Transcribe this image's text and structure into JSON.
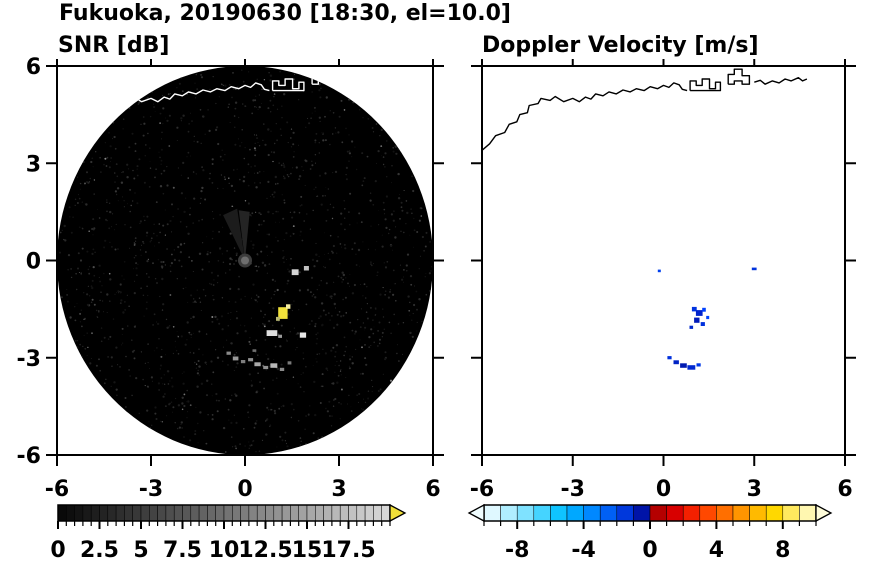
{
  "header": {
    "title": "Fukuoka, 20190630 [18:30, el=10.0]"
  },
  "coastline": {
    "segments": [
      {
        "name": "main-coast",
        "points": [
          [
            -6.0,
            3.4
          ],
          [
            -5.75,
            3.6
          ],
          [
            -5.55,
            3.85
          ],
          [
            -5.25,
            3.95
          ],
          [
            -5.1,
            4.2
          ],
          [
            -4.85,
            4.28
          ],
          [
            -4.75,
            4.5
          ],
          [
            -4.5,
            4.56
          ],
          [
            -4.44,
            4.78
          ],
          [
            -4.15,
            4.84
          ],
          [
            -4.05,
            5.0
          ],
          [
            -3.75,
            4.94
          ],
          [
            -3.58,
            5.06
          ],
          [
            -3.3,
            4.9
          ],
          [
            -3.0,
            5.0
          ],
          [
            -2.78,
            4.9
          ],
          [
            -2.58,
            5.04
          ],
          [
            -2.4,
            4.98
          ],
          [
            -2.24,
            5.14
          ],
          [
            -2.0,
            5.08
          ],
          [
            -1.8,
            5.2
          ],
          [
            -1.56,
            5.14
          ],
          [
            -1.34,
            5.26
          ],
          [
            -1.1,
            5.2
          ],
          [
            -0.9,
            5.3
          ],
          [
            -0.64,
            5.24
          ],
          [
            -0.44,
            5.36
          ],
          [
            -0.2,
            5.3
          ],
          [
            0.0,
            5.4
          ],
          [
            0.18,
            5.34
          ],
          [
            0.34,
            5.48
          ],
          [
            0.52,
            5.42
          ],
          [
            0.62,
            5.28
          ],
          [
            0.78,
            5.24
          ]
        ]
      },
      {
        "name": "harbor-west",
        "points": [
          [
            0.88,
            5.24
          ],
          [
            0.88,
            5.54
          ],
          [
            1.08,
            5.54
          ],
          [
            1.08,
            5.4
          ],
          [
            1.28,
            5.4
          ],
          [
            1.28,
            5.6
          ],
          [
            1.52,
            5.6
          ],
          [
            1.52,
            5.3
          ],
          [
            1.72,
            5.3
          ],
          [
            1.72,
            5.5
          ],
          [
            1.88,
            5.5
          ],
          [
            1.88,
            5.24
          ],
          [
            0.88,
            5.24
          ]
        ]
      },
      {
        "name": "harbor-east",
        "points": [
          [
            2.14,
            5.44
          ],
          [
            2.14,
            5.74
          ],
          [
            2.34,
            5.74
          ],
          [
            2.34,
            5.9
          ],
          [
            2.6,
            5.9
          ],
          [
            2.6,
            5.7
          ],
          [
            2.84,
            5.7
          ],
          [
            2.84,
            5.44
          ],
          [
            2.6,
            5.44
          ],
          [
            2.6,
            5.54
          ],
          [
            2.34,
            5.54
          ],
          [
            2.34,
            5.44
          ],
          [
            2.14,
            5.44
          ]
        ]
      },
      {
        "name": "east-coast",
        "points": [
          [
            3.0,
            5.5
          ],
          [
            3.2,
            5.56
          ],
          [
            3.36,
            5.44
          ],
          [
            3.6,
            5.54
          ],
          [
            3.82,
            5.48
          ],
          [
            4.02,
            5.6
          ],
          [
            4.22,
            5.54
          ],
          [
            4.46,
            5.64
          ],
          [
            4.6,
            5.54
          ],
          [
            4.74,
            5.6
          ]
        ]
      }
    ]
  },
  "chart_data": [
    {
      "type": "heatmap",
      "id": "snr",
      "title": "SNR [dB]",
      "xlim": [
        -6,
        6
      ],
      "ylim": [
        -6,
        6
      ],
      "xticks": [
        -6,
        -3,
        0,
        3,
        6
      ],
      "xtick_labels": [
        "-6",
        "-3",
        "0",
        "3",
        "6"
      ],
      "yticks": [
        6,
        3,
        0,
        -3,
        -6
      ],
      "ytick_labels": [
        "6",
        "3",
        "0",
        "-3",
        "-6"
      ],
      "scan_disk": {
        "cx": 0,
        "cy": 0,
        "r": 6,
        "fill": "#000000",
        "noise": true
      },
      "radar_site": {
        "x": 0,
        "y": 0,
        "dot_color": "#6e6e6e"
      },
      "coastline_color": "#ffffff",
      "echoes": [
        {
          "x": 1.21,
          "y": -1.62,
          "w": 0.3,
          "h": 0.36,
          "color": "#f0e03a"
        },
        {
          "x": 1.38,
          "y": -1.42,
          "w": 0.14,
          "h": 0.14,
          "color": "#f4eda0"
        },
        {
          "x": 1.05,
          "y": -1.8,
          "w": 0.12,
          "h": 0.12,
          "color": "#b9b972"
        },
        {
          "x": 0.86,
          "y": -2.24,
          "w": 0.34,
          "h": 0.18,
          "color": "#dedede"
        },
        {
          "x": 1.12,
          "y": -2.34,
          "w": 0.12,
          "h": 0.1,
          "color": "#9a9a9a"
        },
        {
          "x": 1.85,
          "y": -2.3,
          "w": 0.2,
          "h": 0.16,
          "color": "#e8e8e8"
        },
        {
          "x": 1.6,
          "y": -0.36,
          "w": 0.22,
          "h": 0.18,
          "color": "#d6d6d6"
        },
        {
          "x": 1.96,
          "y": -0.24,
          "w": 0.16,
          "h": 0.14,
          "color": "#c2c2c2"
        },
        {
          "x": -0.52,
          "y": -2.86,
          "w": 0.14,
          "h": 0.1,
          "color": "#8a8a8a"
        },
        {
          "x": -0.3,
          "y": -3.02,
          "w": 0.18,
          "h": 0.12,
          "color": "#999999"
        },
        {
          "x": -0.06,
          "y": -3.12,
          "w": 0.14,
          "h": 0.1,
          "color": "#7e7e7e"
        },
        {
          "x": 0.18,
          "y": -3.06,
          "w": 0.16,
          "h": 0.1,
          "color": "#909090"
        },
        {
          "x": 0.4,
          "y": -3.2,
          "w": 0.2,
          "h": 0.12,
          "color": "#a8a8a8"
        },
        {
          "x": 0.66,
          "y": -3.3,
          "w": 0.16,
          "h": 0.1,
          "color": "#8f8f8f"
        },
        {
          "x": 0.92,
          "y": -3.24,
          "w": 0.22,
          "h": 0.14,
          "color": "#b8b8b8"
        },
        {
          "x": 1.18,
          "y": -3.36,
          "w": 0.14,
          "h": 0.1,
          "color": "#8a8a8a"
        },
        {
          "x": 1.42,
          "y": -3.16,
          "w": 0.12,
          "h": 0.1,
          "color": "#7a7a7a"
        },
        {
          "x": 0.3,
          "y": -2.78,
          "w": 0.12,
          "h": 0.08,
          "color": "#6f6f6f"
        }
      ],
      "colorbar": {
        "orientation": "horizontal",
        "range": [
          0,
          20
        ],
        "segment_step": 0.5,
        "tick_step": 0.5,
        "label_values": [
          0,
          2.5,
          5,
          7.5,
          10,
          12.5,
          15,
          17.5
        ],
        "labels": [
          "0",
          "2.5",
          "5",
          "7.5",
          "10",
          "12.5",
          "15",
          "17.5"
        ],
        "style": "grayscale",
        "over_arrow": "#f0df38"
      }
    },
    {
      "type": "heatmap",
      "id": "velocity",
      "title": "Doppler Velocity [m/s]",
      "xlim": [
        -6,
        6
      ],
      "ylim": [
        -6,
        6
      ],
      "xticks": [
        -6,
        -3,
        0,
        3,
        6
      ],
      "xtick_labels": [
        "-6",
        "-3",
        "0",
        "3",
        "6"
      ],
      "yticks": [
        6,
        3,
        0,
        -3,
        -6
      ],
      "ytick_labels": [
        "6",
        "3",
        "0",
        "-3",
        "-6"
      ],
      "coastline_color": "#000000",
      "echoes": [
        {
          "x": 1.02,
          "y": -1.5,
          "w": 0.16,
          "h": 0.14,
          "color": "#0033e0"
        },
        {
          "x": 1.18,
          "y": -1.62,
          "w": 0.22,
          "h": 0.18,
          "color": "#0022cc"
        },
        {
          "x": 1.34,
          "y": -1.52,
          "w": 0.12,
          "h": 0.12,
          "color": "#0040ff"
        },
        {
          "x": 1.1,
          "y": -1.84,
          "w": 0.18,
          "h": 0.16,
          "color": "#001ab8"
        },
        {
          "x": 1.3,
          "y": -1.96,
          "w": 0.14,
          "h": 0.12,
          "color": "#0030dd"
        },
        {
          "x": 0.92,
          "y": -2.06,
          "w": 0.12,
          "h": 0.1,
          "color": "#0028cc"
        },
        {
          "x": 1.46,
          "y": -1.76,
          "w": 0.1,
          "h": 0.1,
          "color": "#0044ff"
        },
        {
          "x": 0.2,
          "y": -3.0,
          "w": 0.14,
          "h": 0.1,
          "color": "#0030dd"
        },
        {
          "x": 0.42,
          "y": -3.14,
          "w": 0.18,
          "h": 0.12,
          "color": "#0022c4"
        },
        {
          "x": 0.66,
          "y": -3.24,
          "w": 0.22,
          "h": 0.14,
          "color": "#001ab0"
        },
        {
          "x": 0.92,
          "y": -3.3,
          "w": 0.26,
          "h": 0.14,
          "color": "#0028d0"
        },
        {
          "x": 1.16,
          "y": -3.22,
          "w": 0.14,
          "h": 0.1,
          "color": "#0038e8"
        },
        {
          "x": 3.0,
          "y": -0.26,
          "w": 0.16,
          "h": 0.08,
          "color": "#0033dd"
        },
        {
          "x": -0.14,
          "y": -0.32,
          "w": 0.1,
          "h": 0.08,
          "color": "#0040ee"
        }
      ],
      "colorbar": {
        "orientation": "horizontal",
        "range": [
          -10,
          10
        ],
        "segment_step": 1,
        "tick_step": 1,
        "label_values": [
          -8,
          -4,
          0,
          4,
          8
        ],
        "labels": [
          "-8",
          "-4",
          "0",
          "4",
          "8"
        ],
        "colors": [
          "#dff8ff",
          "#b0eeff",
          "#7fe2ff",
          "#45d4ff",
          "#0fc4ff",
          "#00a8ff",
          "#0088ff",
          "#0060f5",
          "#0038dc",
          "#0014a8",
          "#b40000",
          "#d80000",
          "#f42000",
          "#ff4800",
          "#ff6f00",
          "#ff9500",
          "#ffba00",
          "#ffd800",
          "#ffe95e",
          "#fff7b0"
        ],
        "under_arrow": "#f0fdff",
        "over_arrow": "#fffdda"
      }
    }
  ]
}
